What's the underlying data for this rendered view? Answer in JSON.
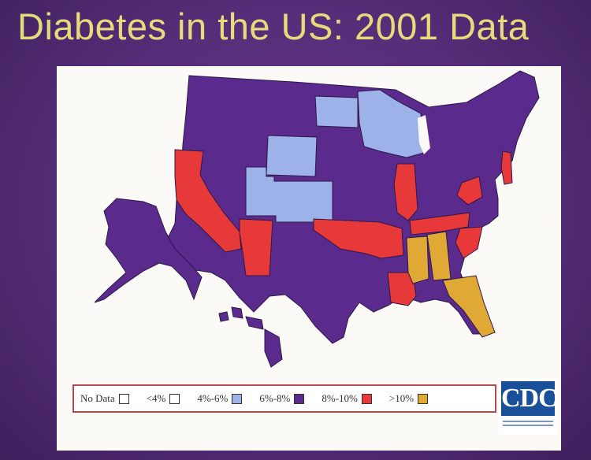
{
  "slide": {
    "title": "Diabetes in the US: 2001 Data"
  },
  "map": {
    "title": "Diabetes in the US: 2001 Data",
    "colors": {
      "no_data": "#ffffff",
      "lt4": "#ffffff",
      "4to6": "#9cb2e8",
      "6to8": "#5a2b8c",
      "8to10": "#e8393a",
      "gt10": "#e0a835",
      "state_border": "#2d1748"
    },
    "legend": [
      {
        "label": "No Data",
        "color_key": "no_data"
      },
      {
        "label": "<4%",
        "color_key": "lt4"
      },
      {
        "label": "4%-6%",
        "color_key": "4to6"
      },
      {
        "label": "6%-8%",
        "color_key": "6to8"
      },
      {
        "label": "8%-10%",
        "color_key": "8to10"
      },
      {
        "label": ">10%",
        "color_key": "gt10"
      }
    ],
    "logo": {
      "text": "CDC"
    }
  }
}
